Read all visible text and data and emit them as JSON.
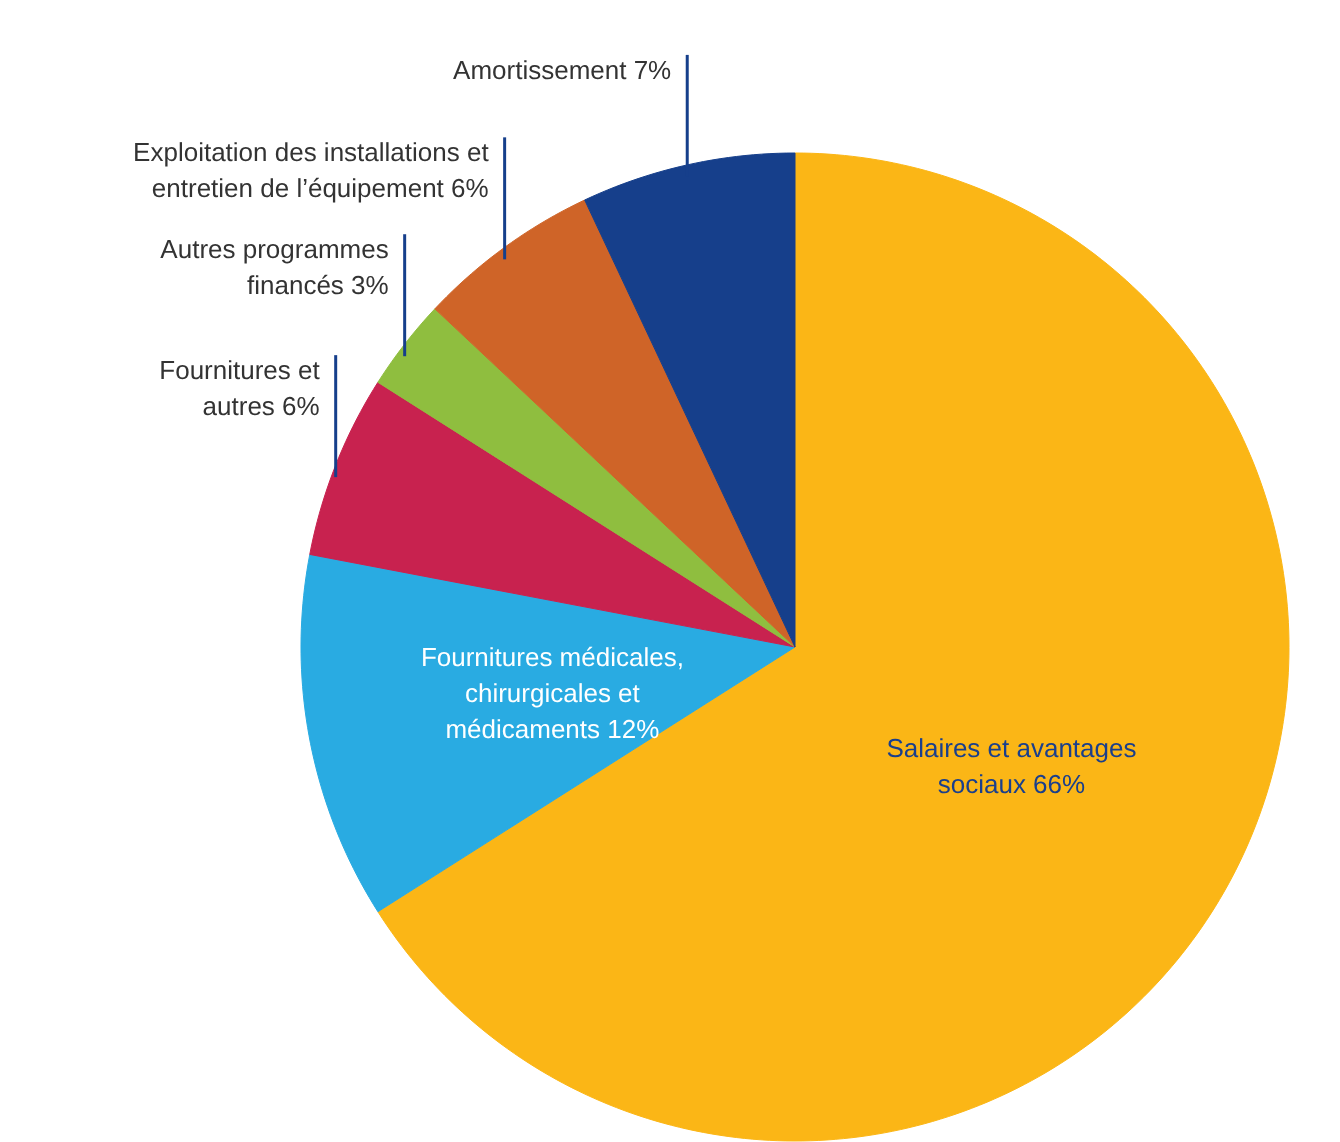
{
  "chart_data": {
    "type": "pie",
    "categories": [
      "Salaires et avantages\nsociaux",
      "Fournitures médicales,\nchirurgicales et\nmédicaments",
      "Fournitures et\nautres",
      "Autres programmes\nfinancés",
      "Exploitation des installations et\nentretien de l’équipement",
      "Amortissement"
    ],
    "values": [
      66,
      12,
      6,
      3,
      6,
      7
    ],
    "value_labels": [
      "66%",
      "12%",
      "6%",
      "3%",
      "6%",
      "7%"
    ],
    "colors": [
      "#fbb616",
      "#29abe2",
      "#c8224f",
      "#8fbe3f",
      "#cf6428",
      "#163f8b"
    ]
  }
}
